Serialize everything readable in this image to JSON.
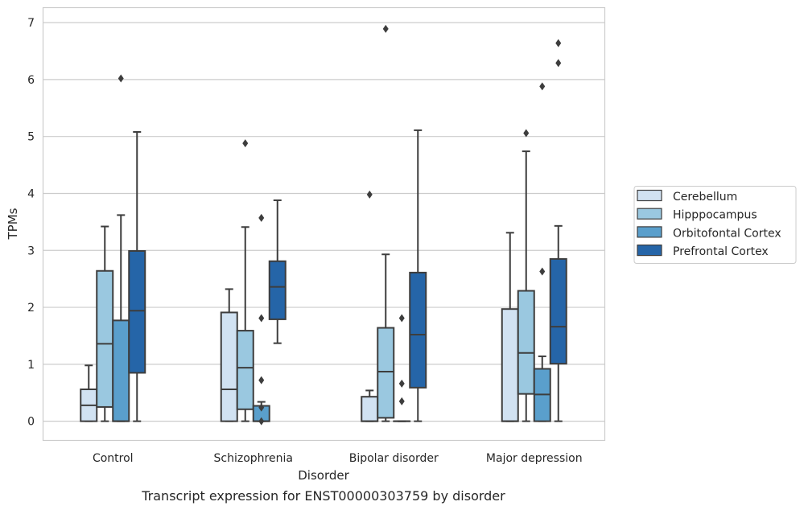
{
  "caption": "Transcript expression for ENST00000303759 by disorder",
  "chart_data": {
    "type": "box",
    "xlabel": "Disorder",
    "ylabel": "TPMs",
    "ylim": [
      -0.33,
      7.27
    ],
    "yticks": [
      0,
      1,
      2,
      3,
      4,
      5,
      6,
      7
    ],
    "grid": "horizontal",
    "legend_placement": "right",
    "categories": [
      "Control",
      "Schizophrenia",
      "Bipolar disorder",
      "Major depression"
    ],
    "series": [
      {
        "name": "Cerebellum",
        "color": "#d1e2f2",
        "boxes": [
          {
            "whislo": 0,
            "q1": 0,
            "med": 0.28,
            "q3": 0.56,
            "whishi": 0.98,
            "fliers": []
          },
          {
            "whislo": 0,
            "q1": 0,
            "med": 0.56,
            "q3": 1.91,
            "whishi": 2.32,
            "fliers": []
          },
          {
            "whislo": 0,
            "q1": 0,
            "med": 0,
            "q3": 0.43,
            "whishi": 0.54,
            "fliers": [
              3.98
            ]
          },
          {
            "whislo": 0,
            "q1": 0,
            "med": 0,
            "q3": 1.97,
            "whishi": 3.31,
            "fliers": []
          }
        ]
      },
      {
        "name": "Hipppocampus",
        "color": "#9ac8e0",
        "boxes": [
          {
            "whislo": 0,
            "q1": 0.25,
            "med": 1.36,
            "q3": 2.64,
            "whishi": 3.42,
            "fliers": []
          },
          {
            "whislo": 0,
            "q1": 0.21,
            "med": 0.94,
            "q3": 1.59,
            "whishi": 3.41,
            "fliers": [
              4.88
            ]
          },
          {
            "whislo": 0,
            "q1": 0.06,
            "med": 0.87,
            "q3": 1.64,
            "whishi": 2.93,
            "fliers": [
              6.89
            ]
          },
          {
            "whislo": 0,
            "q1": 0.48,
            "med": 1.2,
            "q3": 2.29,
            "whishi": 4.74,
            "fliers": [
              5.06
            ]
          }
        ]
      },
      {
        "name": "Orbitofontal Cortex",
        "color": "#5a9fcc",
        "boxes": [
          {
            "whislo": 0,
            "q1": 0,
            "med": 0,
            "q3": 1.77,
            "whishi": 3.62,
            "fliers": [
              6.02
            ]
          },
          {
            "whislo": 0,
            "q1": 0,
            "med": 0,
            "q3": 0.27,
            "whishi": 0.34,
            "fliers": [
              0.72,
              1.81,
              3.57,
              0.24,
              0
            ]
          },
          {
            "whislo": 0,
            "q1": 0,
            "med": 0,
            "q3": 0,
            "whishi": 0,
            "fliers": [
              0.35,
              0.66,
              1.81
            ]
          },
          {
            "whislo": 0,
            "q1": 0,
            "med": 0.47,
            "q3": 0.92,
            "whishi": 1.14,
            "fliers": [
              2.63,
              5.88
            ]
          }
        ]
      },
      {
        "name": "Prefrontal Cortex",
        "color": "#2565a8",
        "boxes": [
          {
            "whislo": 0,
            "q1": 0.85,
            "med": 1.94,
            "q3": 2.99,
            "whishi": 5.08,
            "fliers": []
          },
          {
            "whislo": 1.37,
            "q1": 1.79,
            "med": 2.36,
            "q3": 2.81,
            "whishi": 3.88,
            "fliers": []
          },
          {
            "whislo": 0,
            "q1": 0.59,
            "med": 1.52,
            "q3": 2.61,
            "whishi": 5.11,
            "fliers": []
          },
          {
            "whislo": 0,
            "q1": 1.01,
            "med": 1.66,
            "q3": 2.85,
            "whishi": 3.43,
            "fliers": [
              6.29,
              6.64
            ]
          }
        ]
      }
    ]
  }
}
